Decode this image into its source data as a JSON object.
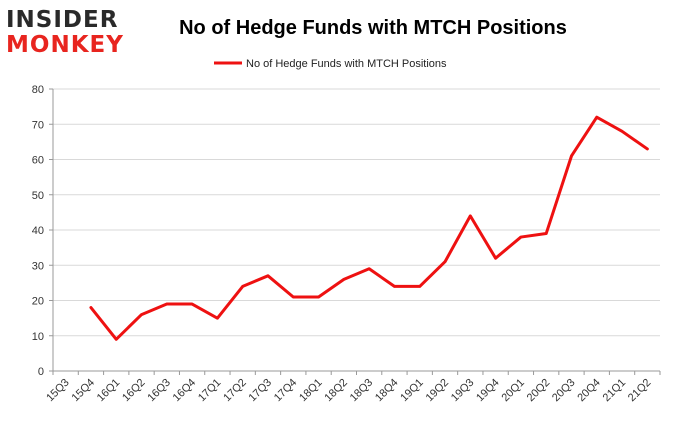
{
  "logo": {
    "line1": "INSIDER",
    "line2": "MONKEY",
    "colors": {
      "insider": "#2a2a2a",
      "monkey": "#e8251f"
    }
  },
  "chart_data": {
    "type": "line",
    "title": "No of Hedge Funds with MTCH Positions",
    "xlabel": "",
    "ylabel": "",
    "categories": [
      "15Q3",
      "15Q4",
      "16Q1",
      "16Q2",
      "16Q3",
      "16Q4",
      "17Q1",
      "17Q2",
      "17Q3",
      "17Q4",
      "18Q1",
      "18Q2",
      "18Q3",
      "18Q4",
      "19Q1",
      "19Q2",
      "19Q3",
      "19Q4",
      "20Q1",
      "20Q2",
      "20Q3",
      "20Q4",
      "21Q1",
      "21Q2"
    ],
    "series": [
      {
        "name": "No of Hedge Funds with MTCH Positions",
        "color": "#ee1111",
        "values": [
          null,
          18,
          9,
          16,
          19,
          19,
          15,
          24,
          27,
          21,
          21,
          26,
          29,
          24,
          24,
          31,
          44,
          32,
          38,
          39,
          61,
          72,
          68,
          63
        ]
      }
    ],
    "ylim": [
      0,
      80
    ],
    "yticks": [
      0,
      10,
      20,
      30,
      40,
      50,
      60,
      70,
      80
    ],
    "grid": true,
    "legend": "top-center",
    "colors": {
      "grid": "#d9d9d9",
      "axis": "#999999"
    }
  }
}
